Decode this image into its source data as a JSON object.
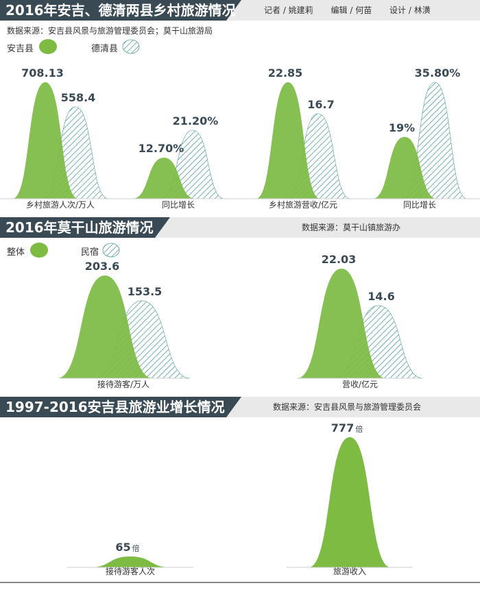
{
  "colors": {
    "green": "#7dbb43",
    "overlap": "#6cae6d",
    "teal": "#4f9e9a",
    "dark": "#3a4a55",
    "banner": "#e9e9e9"
  },
  "section1": {
    "title": "2016年安吉、德清两县乡村旅游情况",
    "credits": [
      "记者 / 姚建莉",
      "编辑 / 何苗",
      "设计 / 林潢"
    ],
    "source": "数据来源：安吉县风景与旅游管理委员会；莫干山旅游局",
    "legend": {
      "a": "安吉县",
      "b": "德清县"
    }
  },
  "section2": {
    "title": "2016年莫干山旅游情况",
    "source": "数据来源：莫干山镇旅游办",
    "legend": {
      "a": "整体",
      "b": "民宿"
    }
  },
  "section3": {
    "title": "1997-2016安吉县旅游业增长情况",
    "source": "数据来源：安吉县风景与旅游管理委员会"
  },
  "chart_data": [
    {
      "type": "area",
      "category": "乡村旅游人次/万人",
      "series": [
        {
          "name": "安吉县",
          "value": 708.13,
          "label": "708.13"
        },
        {
          "name": "德清县",
          "value": 558.4,
          "label": "558.4"
        }
      ]
    },
    {
      "type": "area",
      "category": "同比增长",
      "series": [
        {
          "name": "安吉县",
          "value": 12.7,
          "label": "12.70%"
        },
        {
          "name": "德清县",
          "value": 21.2,
          "label": "21.20%"
        }
      ]
    },
    {
      "type": "area",
      "category": "乡村旅游营收/亿元",
      "series": [
        {
          "name": "安吉县",
          "value": 22.85,
          "label": "22.85"
        },
        {
          "name": "德清县",
          "value": 16.7,
          "label": "16.7"
        }
      ]
    },
    {
      "type": "area",
      "category": "同比增长",
      "series": [
        {
          "name": "安吉县",
          "value": 19,
          "label": "19%"
        },
        {
          "name": "德清县",
          "value": 35.8,
          "label": "35.80%"
        }
      ]
    },
    {
      "type": "area",
      "category": "接待游客/万人",
      "series": [
        {
          "name": "整体",
          "value": 203.6,
          "label": "203.6"
        },
        {
          "name": "民宿",
          "value": 153.5,
          "label": "153.5"
        }
      ]
    },
    {
      "type": "area",
      "category": "营收/亿元",
      "series": [
        {
          "name": "整体",
          "value": 22.03,
          "label": "22.03"
        },
        {
          "name": "民宿",
          "value": 14.6,
          "label": "14.6"
        }
      ]
    },
    {
      "type": "area",
      "category": "接待游客人次",
      "series": [
        {
          "name": "安吉县",
          "value": 65,
          "label": "65",
          "unit": "倍"
        }
      ]
    },
    {
      "type": "area",
      "category": "旅游收入",
      "series": [
        {
          "name": "安吉县",
          "value": 777,
          "label": "777",
          "unit": "倍"
        }
      ]
    }
  ]
}
